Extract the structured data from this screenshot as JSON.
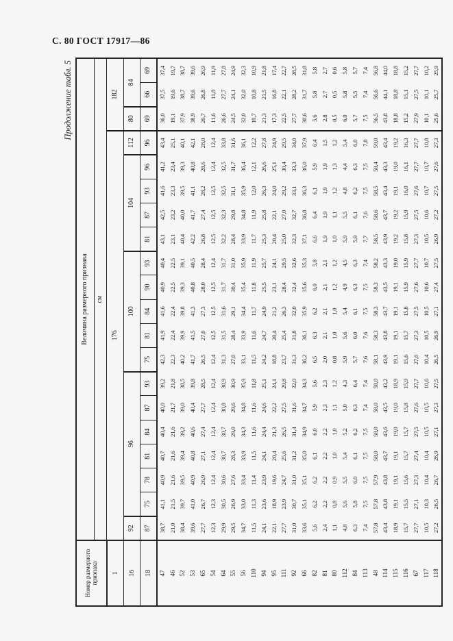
{
  "page": {
    "header": "С. 80 ГОСТ 17917—86",
    "caption": "Продолжение табл. 5"
  },
  "table": {
    "corner_label": "Номер размерного признака",
    "value_header": "Величина размерного признака",
    "unit_label": "см",
    "attr_row_numbers": [
      "1",
      "16",
      "18"
    ],
    "height_groups": [
      {
        "label": "176",
        "colspan": 17
      },
      {
        "label": "182",
        "colspan": 3
      }
    ],
    "chest_groups": [
      {
        "label": "92",
        "colspan": 1
      },
      {
        "label": "96",
        "colspan": 6
      },
      {
        "label": "100",
        "colspan": 5
      },
      {
        "label": "104",
        "colspan": 4
      },
      {
        "label": "112",
        "colspan": 1
      },
      {
        "label": "80",
        "colspan": 1
      },
      {
        "label": "84",
        "colspan": 2
      }
    ],
    "waist_headers": [
      "87",
      "75",
      "78",
      "81",
      "84",
      "87",
      "93",
      "75",
      "81",
      "84",
      "90",
      "93",
      "81",
      "87",
      "93",
      "96",
      "96",
      "69",
      "66",
      "69"
    ],
    "group_start_cols": [
      0,
      1,
      7,
      12,
      16,
      17,
      18
    ],
    "height_boundary_col": 17,
    "row_numbers": [
      "47",
      "46",
      "52",
      "53",
      "65",
      "54",
      "64",
      "55",
      "56",
      "110",
      "94",
      "95",
      "111",
      "92",
      "66",
      "82",
      "81",
      "80",
      "112",
      "84",
      "113",
      "48",
      "114",
      "115",
      "116",
      "67",
      "117",
      "118"
    ],
    "columns": [
      [
        "38,7",
        "21,0",
        "38,4",
        "39,6",
        "27,7",
        "12,3",
        "29,9",
        "29,5",
        "34,7",
        "11,5",
        "24,1",
        "22,1",
        "27,7",
        "31,0",
        "33,6",
        "5,6",
        "2,4",
        "1,1",
        "4,8",
        "6,3",
        "7,4",
        "57,8",
        "43,4",
        "18,9",
        "15,7",
        "27,7",
        "10,5",
        "27,2"
      ],
      [
        "41,1",
        "21,5",
        "39,7",
        "41,0",
        "26,7",
        "12,3",
        "30,5",
        "26,9",
        "33,0",
        "11,3",
        "23,6",
        "18,9",
        "23,9",
        "30,7",
        "35,1",
        "6,2",
        "2,2",
        "0,8",
        "5,6",
        "5,8",
        "7,5",
        "57,8",
        "43,8",
        "19,1",
        "15,5",
        "27,1",
        "10,3",
        "26,5"
      ],
      [
        "40,9",
        "21,6",
        "39,5",
        "40,9",
        "26,9",
        "12,4",
        "30,6",
        "27,6",
        "33,4",
        "11,4",
        "23,9",
        "19,6",
        "24,7",
        "31,0",
        "35,1",
        "6,2",
        "2,2",
        "0,9",
        "5,5",
        "6,0",
        "7,5",
        "57,9",
        "43,8",
        "19,1",
        "15,6",
        "27,3",
        "10,4",
        "26,7"
      ],
      [
        "40,7",
        "21,6",
        "39,4",
        "40,8",
        "27,1",
        "12,4",
        "30,7",
        "28,3",
        "33,9",
        "11,5",
        "24,1",
        "20,4",
        "25,6",
        "31,2",
        "35,0",
        "6,1",
        "2,2",
        "1,0",
        "5,4",
        "6,1",
        "7,5",
        "58,0",
        "43,7",
        "19,1",
        "15,7",
        "27,4",
        "10,4",
        "26,9"
      ],
      [
        "40,4",
        "21,6",
        "39,2",
        "40,6",
        "27,4",
        "12,4",
        "30,7",
        "29,0",
        "34,3",
        "11,6",
        "24,4",
        "21,3",
        "26,5",
        "31,4",
        "34,9",
        "6,0",
        "2,2",
        "1,0",
        "5,2",
        "6,2",
        "7,5",
        "58,0",
        "43,6",
        "19,0",
        "15,7",
        "27,5",
        "10,5",
        "27,1"
      ],
      [
        "40,0",
        "21,7",
        "39,0",
        "40,4",
        "27,7",
        "12,4",
        "30,8",
        "29,6",
        "34,8",
        "11,6",
        "24,6",
        "22,2",
        "27,5",
        "31,6",
        "34,7",
        "5,9",
        "2,3",
        "1,1",
        "5,0",
        "6,3",
        "7,4",
        "58,0",
        "43,5",
        "19,0",
        "15,8",
        "27,6",
        "10,5",
        "27,3"
      ],
      [
        "39,2",
        "21,8",
        "38,5",
        "39,8",
        "28,5",
        "12,4",
        "30,9",
        "30,9",
        "35,9",
        "11,8",
        "25,1",
        "24,1",
        "29,8",
        "32,0",
        "34,3",
        "5,6",
        "2,3",
        "1,2",
        "4,3",
        "6,4",
        "7,4",
        "58,0",
        "43,2",
        "18,9",
        "15,9",
        "27,7",
        "10,6",
        "27,5"
      ],
      [
        "42,3",
        "22,3",
        "40,2",
        "41,7",
        "26,5",
        "12,4",
        "31,3",
        "27,0",
        "33,1",
        "11,5",
        "24,2",
        "18,8",
        "23,7",
        "31,3",
        "36,2",
        "6,5",
        "2,0",
        "0,8",
        "5,9",
        "5,7",
        "7,6",
        "58,1",
        "43,9",
        "19,1",
        "15,6",
        "27,0",
        "10,4",
        "26,5"
      ],
      [
        "41,9",
        "22,4",
        "39,9",
        "41,5",
        "27,0",
        "12,5",
        "31,5",
        "28,4",
        "33,9",
        "11,6",
        "24,7",
        "20,4",
        "25,4",
        "31,8",
        "36,1",
        "6,3",
        "2,1",
        "1,0",
        "5,6",
        "6,0",
        "7,6",
        "58,3",
        "43,8",
        "19,1",
        "15,7",
        "27,3",
        "10,5",
        "26,9"
      ],
      [
        "41,6",
        "22,4",
        "39,8",
        "41,3",
        "27,3",
        "12,5",
        "31,6",
        "29,1",
        "34,4",
        "11,7",
        "24,9",
        "21,2",
        "26,3",
        "32,0",
        "35,9",
        "6,2",
        "2,1",
        "1,0",
        "5,4",
        "6,1",
        "7,5",
        "58,3",
        "43,7",
        "19,1",
        "15,8",
        "27,5",
        "10,5",
        "27,1"
      ],
      [
        "40,9",
        "22,5",
        "39,3",
        "40,8",
        "28,0",
        "12,5",
        "31,7",
        "30,4",
        "35,4",
        "11,8",
        "25,5",
        "23,1",
        "28,4",
        "32,4",
        "35,6",
        "6,0",
        "2,1",
        "1,2",
        "4,9",
        "6,3",
        "7,5",
        "58,3",
        "43,5",
        "19,1",
        "15,9",
        "27,6",
        "10,6",
        "27,4"
      ],
      [
        "40,4",
        "22,5",
        "39,1",
        "40,5",
        "28,4",
        "12,4",
        "31,7",
        "31,0",
        "35,9",
        "11,9",
        "25,7",
        "24,1",
        "29,5",
        "32,6",
        "35,3",
        "5,8",
        "2,1",
        "1,2",
        "4,5",
        "6,3",
        "7,4",
        "58,2",
        "43,3",
        "19,0",
        "15,9",
        "27,7",
        "10,7",
        "27,5"
      ],
      [
        "43,1",
        "23,1",
        "40,4",
        "42,2",
        "26,8",
        "12,5",
        "32,2",
        "28,4",
        "33,9",
        "11,7",
        "25,3",
        "20,4",
        "25,0",
        "32,3",
        "37,1",
        "6,6",
        "1,9",
        "1,0",
        "5,9",
        "5,9",
        "7,7",
        "58,5",
        "43,9",
        "19,2",
        "15,8",
        "27,3",
        "10,5",
        "26,9"
      ],
      [
        "42,5",
        "23,2",
        "40,0",
        "41,7",
        "27,4",
        "12,5",
        "32,3",
        "29,8",
        "34,8",
        "11,9",
        "25,8",
        "22,1",
        "27,0",
        "32,7",
        "36,8",
        "6,4",
        "1,9",
        "1,1",
        "5,5",
        "6,1",
        "7,6",
        "58,6",
        "43,7",
        "19,2",
        "15,9",
        "27,5",
        "10,6",
        "27,2"
      ],
      [
        "41,6",
        "23,3",
        "39,5",
        "41,1",
        "28,2",
        "12,5",
        "32,5",
        "31,1",
        "35,9",
        "12,0",
        "26,3",
        "24,0",
        "29,2",
        "33,1",
        "36,3",
        "6,1",
        "1,9",
        "1,2",
        "4,8",
        "6,2",
        "7,5",
        "58,5",
        "43,4",
        "19,1",
        "16,0",
        "27,6",
        "10,7",
        "27,5"
      ],
      [
        "41,2",
        "23,4",
        "39,3",
        "40,8",
        "28,6",
        "12,4",
        "32,5",
        "31,7",
        "36,4",
        "12,1",
        "26,6",
        "25,1",
        "30,4",
        "33,3",
        "36,0",
        "5,9",
        "1,9",
        "1,3",
        "4,4",
        "6,3",
        "7,5",
        "58,4",
        "43,3",
        "19,0",
        "16,1",
        "27,7",
        "10,7",
        "27,6"
      ],
      [
        "43,4",
        "25,1",
        "40,1",
        "42,1",
        "28,0",
        "12,4",
        "33,8",
        "31,6",
        "36,1",
        "12,2",
        "27,8",
        "24,9",
        "29,5",
        "34,0",
        "37,9",
        "6,4",
        "1,5",
        "1,2",
        "5,4",
        "6,0",
        "7,8",
        "59,0",
        "43,4",
        "19,2",
        "16,3",
        "27,7",
        "10,8",
        "27,3"
      ],
      [
        "36,0",
        "19,1",
        "37,9",
        "38,9",
        "26,7",
        "11,6",
        "26,6",
        "24,5",
        "32,0",
        "10,7",
        "21,3",
        "17,3",
        "22,5",
        "27,7",
        "30,6",
        "5,6",
        "2,8",
        "0,5",
        "6,0",
        "5,7",
        "7,5",
        "56,5",
        "43,8",
        "18,8",
        "15,2",
        "27,9",
        "10,1",
        "25,6"
      ],
      [
        "37,5",
        "19,6",
        "38,7",
        "39,6",
        "26,8",
        "11,8",
        "27,7",
        "24,1",
        "32,0",
        "10,8",
        "21,5",
        "16,8",
        "22,1",
        "28,2",
        "31,7",
        "5,8",
        "2,7",
        "0,5",
        "5,8",
        "5,5",
        "7,4",
        "56,6",
        "44,1",
        "18,8",
        "15,1",
        "27,5",
        "10,1",
        "25,7"
      ],
      [
        "37,4",
        "19,7",
        "38,7",
        "39,6",
        "26,9",
        "11,9",
        "27,8",
        "24,9",
        "32,3",
        "10,9",
        "21,8",
        "17,4",
        "22,7",
        "28,5",
        "31,8",
        "5,8",
        "2,7",
        "0,6",
        "5,8",
        "5,7",
        "7,4",
        "56,8",
        "44,0",
        "18,8",
        "15,2",
        "27,7",
        "10,2",
        "25,9"
      ]
    ]
  }
}
